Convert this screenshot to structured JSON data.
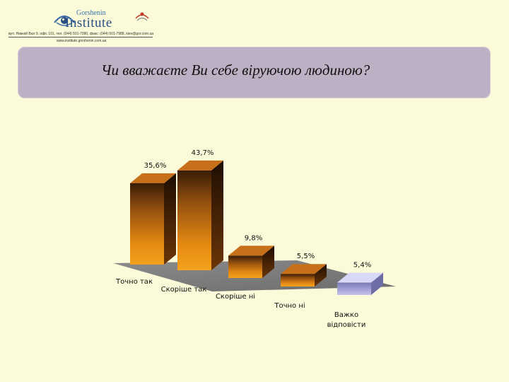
{
  "header": {
    "logo_small_text": "Gorshenin",
    "logo_big_text": "Institute",
    "address_line": "вул. Нижній Вал 9, офіс 101, тел. (044) 501-7990, факс: (044) 501-7988, kiev@gor.com.ua",
    "website": "www.institute.gorshenin.com.ua"
  },
  "title": "Чи вважаєте Ви себе віруючою людиною?",
  "colors": {
    "background": "#fbfbd9",
    "banner": "#beb0c4",
    "bar_orange": "#e08a10",
    "bar_lavender": "#a9a8d8",
    "floor": "#7d7d7d"
  },
  "chart_data": {
    "type": "bar",
    "title": "",
    "categories": [
      "Точно так",
      "Скоріше так",
      "Скоріше ні",
      "Точно ні",
      "Важко відповісти"
    ],
    "category_lines": [
      [
        "Точно так"
      ],
      [
        "Скоріше так"
      ],
      [
        "Скоріше ні"
      ],
      [
        "Точно ні"
      ],
      [
        "Важко",
        "відповісти"
      ]
    ],
    "values": [
      35.6,
      43.7,
      9.8,
      5.5,
      5.4
    ],
    "value_labels": [
      "35,6%",
      "43,7%",
      "9,8%",
      "5,5%",
      "5,4%"
    ],
    "unit": "%",
    "ylim": [
      0,
      50
    ],
    "grid": false,
    "legend": false,
    "three_d": true
  }
}
